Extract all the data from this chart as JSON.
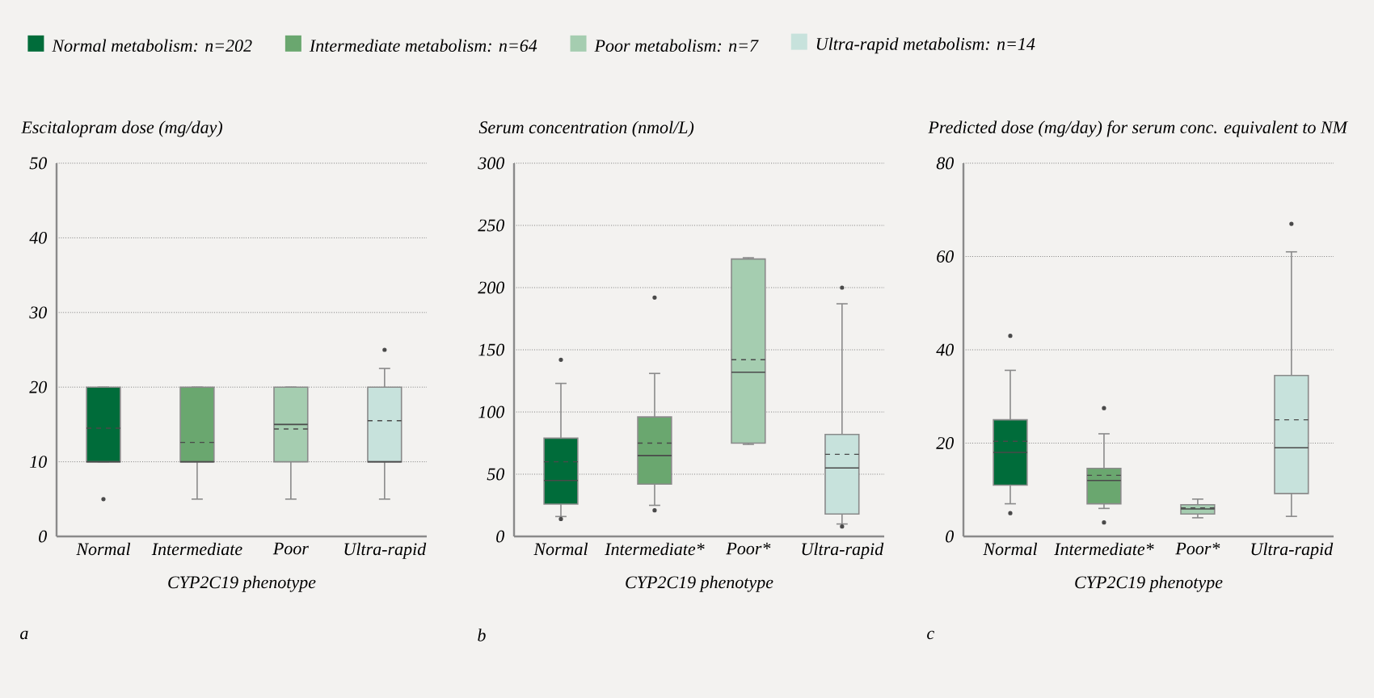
{
  "chart_data": [
    {
      "type": "box",
      "title": "Escitalopram dose (mg/day)",
      "xlabel": "CYP2C19 phenotype",
      "categories": [
        "Normal",
        "Intermediate",
        "Poor",
        "Ultra-rapid"
      ],
      "ylim": [
        0,
        50
      ],
      "yticks": [
        0,
        10,
        20,
        30,
        40,
        50
      ],
      "grid": "y",
      "legend": "top",
      "annotations": [
        "a"
      ],
      "series": [
        {
          "name": "Normal metabolism: n=202",
          "color": "#006c3a",
          "boxes": [
            {
              "low": 10,
              "q1": 10,
              "median": 10,
              "q3": 20,
              "high": 20,
              "mean": 14.5,
              "outliers": [
                5
              ]
            },
            null,
            null,
            null
          ]
        },
        {
          "name": "Intermediate metabolism: n=64",
          "color": "#6aa76f",
          "boxes": [
            null,
            {
              "low": 5,
              "q1": 10,
              "median": 10,
              "q3": 20,
              "high": 20,
              "mean": 12.6
            },
            null,
            null
          ]
        },
        {
          "name": "Poor metabolism: n=7",
          "color": "#a5cdb0",
          "boxes": [
            null,
            null,
            {
              "low": 5,
              "q1": 10,
              "median": 15,
              "q3": 20,
              "high": 20,
              "mean": 14.4
            },
            null
          ]
        },
        {
          "name": "Ultra-rapid metabolism: n=14",
          "color": "#c7e2dc",
          "boxes": [
            null,
            null,
            null,
            {
              "low": 5,
              "q1": 10,
              "median": 10,
              "q3": 20,
              "high": 22.5,
              "mean": 15.5,
              "outliers": [
                25
              ]
            }
          ]
        }
      ]
    },
    {
      "type": "box",
      "title": "Serum concentration (nmol/L)",
      "xlabel": "CYP2C19 phenotype",
      "categories": [
        "Normal",
        "Intermediate*",
        "Poor*",
        "Ultra-rapid"
      ],
      "ylim": [
        0,
        300
      ],
      "yticks": [
        0,
        50,
        100,
        150,
        200,
        250,
        300
      ],
      "grid": "y",
      "annotations": [
        "b"
      ],
      "series": [
        {
          "color": "#006c3a",
          "boxes": [
            {
              "low": 16,
              "q1": 26,
              "median": 45,
              "q3": 79,
              "high": 123,
              "mean": 60,
              "outliers": [
                14,
                142
              ]
            },
            null,
            null,
            null
          ]
        },
        {
          "color": "#6aa76f",
          "boxes": [
            null,
            {
              "low": 25,
              "q1": 42,
              "median": 65,
              "q3": 96,
              "high": 131,
              "mean": 75,
              "outliers": [
                21,
                192
              ]
            },
            null,
            null
          ]
        },
        {
          "color": "#a5cdb0",
          "boxes": [
            null,
            null,
            {
              "low": 74,
              "q1": 75,
              "median": 132,
              "q3": 223,
              "high": 224,
              "mean": 142
            },
            null
          ]
        },
        {
          "color": "#c7e2dc",
          "boxes": [
            null,
            null,
            null,
            {
              "low": 10,
              "q1": 18,
              "median": 55,
              "q3": 82,
              "high": 187,
              "mean": 66,
              "outliers": [
                8,
                200
              ]
            }
          ]
        }
      ]
    },
    {
      "type": "box",
      "title": "Predicted dose (mg/day) for serum conc. equivalent to NM",
      "xlabel": "CYP2C19 phenotype",
      "categories": [
        "Normal",
        "Intermediate*",
        "Poor*",
        "Ultra-rapid"
      ],
      "ylim": [
        0,
        80
      ],
      "yticks": [
        0,
        20,
        40,
        60,
        80
      ],
      "grid": "y",
      "annotations": [
        "c"
      ],
      "series": [
        {
          "color": "#006c3a",
          "boxes": [
            {
              "low": 7,
              "q1": 11,
              "median": 18,
              "q3": 25,
              "high": 35.6,
              "mean": 20.4,
              "outliers": [
                5,
                43
              ]
            },
            null,
            null,
            null
          ]
        },
        {
          "color": "#6aa76f",
          "boxes": [
            null,
            {
              "low": 6,
              "q1": 7,
              "median": 12,
              "q3": 14.6,
              "high": 22,
              "mean": 13.1,
              "outliers": [
                3,
                27.5
              ]
            },
            null,
            null
          ]
        },
        {
          "color": "#a5cdb0",
          "boxes": [
            null,
            null,
            {
              "low": 4,
              "q1": 4.8,
              "median": 5.9,
              "q3": 6.8,
              "high": 8,
              "mean": 6.1
            },
            null
          ]
        },
        {
          "color": "#c7e2dc",
          "boxes": [
            null,
            null,
            null,
            {
              "low": 4.3,
              "q1": 9.2,
              "median": 19,
              "q3": 34.5,
              "high": 61,
              "mean": 25,
              "outliers": [
                67
              ]
            }
          ]
        }
      ]
    }
  ]
}
